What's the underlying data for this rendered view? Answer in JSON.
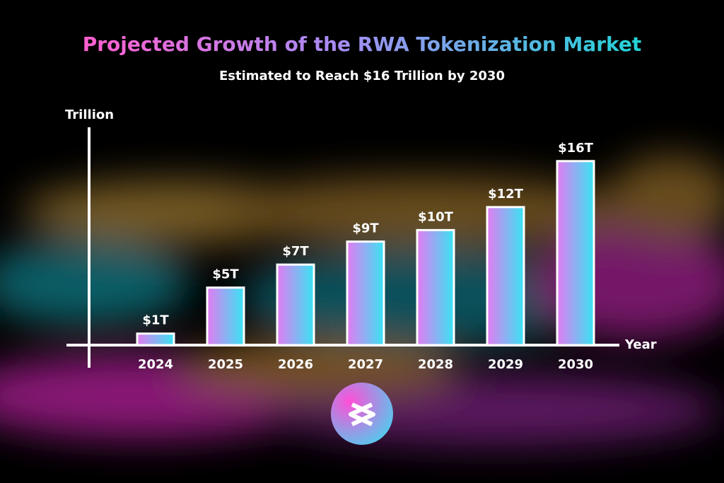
{
  "chart_data": {
    "type": "bar",
    "title": "Projected Growth of the RWA Tokenization Market",
    "subtitle": "Estimated to Reach $16 Trillion by 2030",
    "y_label": "Trillion",
    "x_label": "Year",
    "categories": [
      "2024",
      "2025",
      "2026",
      "2027",
      "2028",
      "2029",
      "2030"
    ],
    "values": [
      1,
      5,
      7,
      9,
      10,
      12,
      16
    ],
    "value_labels": [
      "$1T",
      "$5T",
      "$7T",
      "$9T",
      "$10T",
      "$12T",
      "$16T"
    ],
    "colors": [
      "#e27cf2",
      "#38e4f2"
    ],
    "ylim": [
      0,
      19
    ]
  }
}
